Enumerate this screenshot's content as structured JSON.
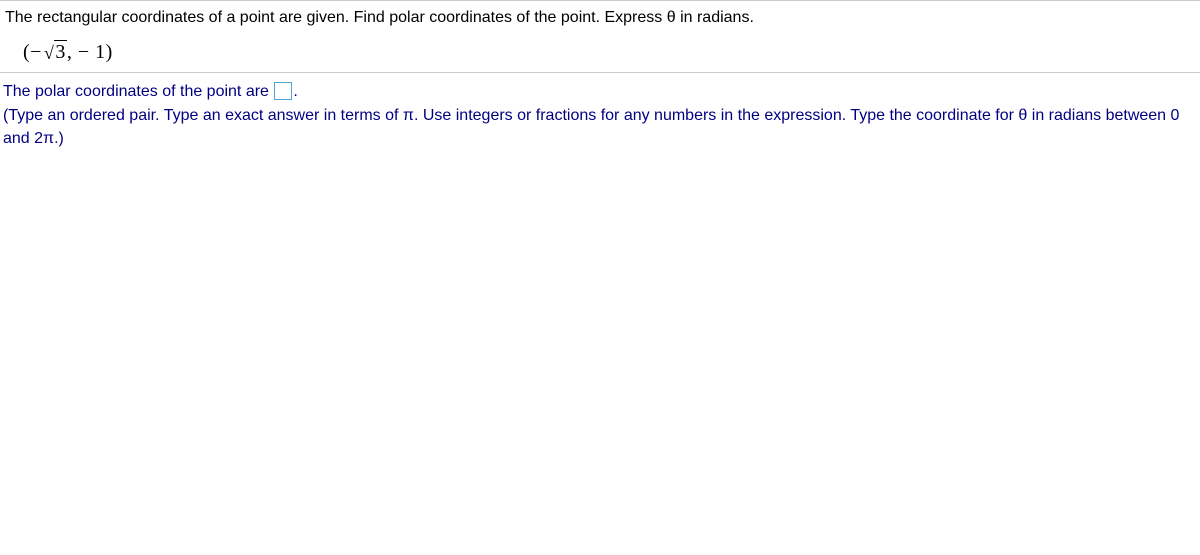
{
  "question": {
    "prompt_text": "The rectangular coordinates of a point are given. Find polar coordinates of the point. Express θ in radians.",
    "point_prefix": "(−",
    "point_radicand": "3",
    "point_suffix": ", − 1)"
  },
  "answer": {
    "lead_text": "The polar coordinates of the point are ",
    "period": ".",
    "hint_text": "(Type an ordered pair. Type an exact answer in terms of π. Use integers or fractions for any numbers in the expression. Type the coordinate for θ in radians between 0 and 2π.)"
  },
  "colors": {
    "text_main": "#000000",
    "text_answer": "#000080",
    "border_section": "#cccccc",
    "input_border": "#4da6d9",
    "background": "#ffffff"
  }
}
